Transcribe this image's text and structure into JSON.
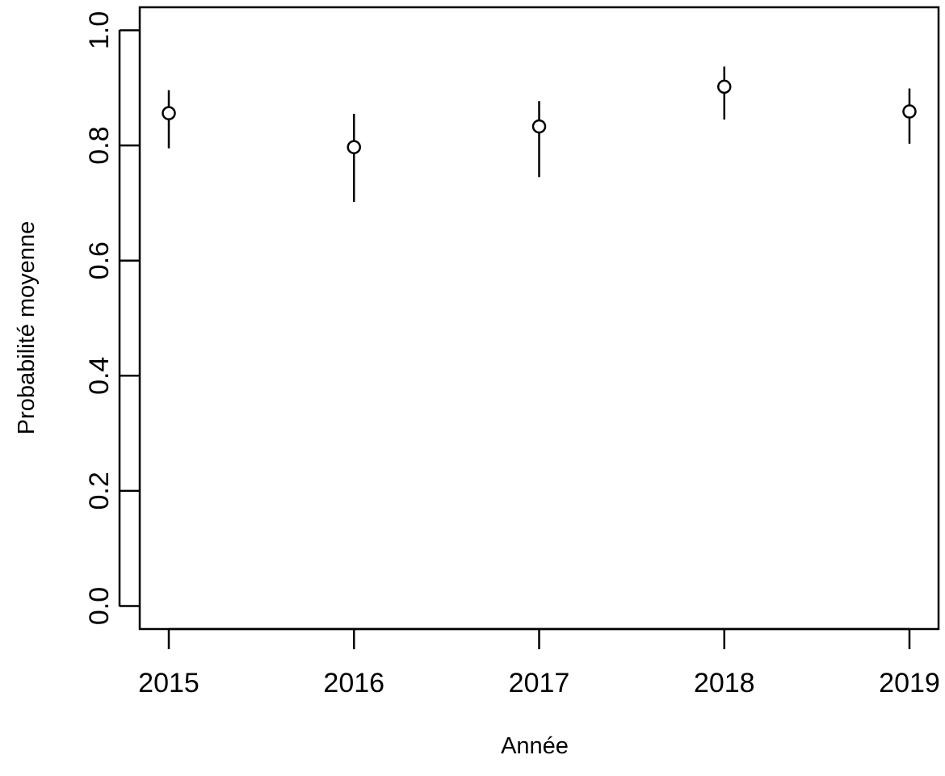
{
  "chart_data": {
    "type": "scatter",
    "title": "",
    "xlabel": "Année",
    "ylabel": "Probabilité moyenne",
    "categories": [
      "2015",
      "2016",
      "2017",
      "2018",
      "2019"
    ],
    "x": [
      2015,
      2016,
      2017,
      2018,
      2019
    ],
    "y": [
      0.856,
      0.797,
      0.833,
      0.902,
      0.859
    ],
    "y_lower": [
      0.795,
      0.702,
      0.745,
      0.845,
      0.803
    ],
    "y_upper": [
      0.896,
      0.855,
      0.877,
      0.937,
      0.899
    ],
    "yticks": [
      "0.0",
      "0.2",
      "0.4",
      "0.6",
      "0.8",
      "1.0"
    ],
    "ytick_values": [
      0.0,
      0.2,
      0.4,
      0.6,
      0.8,
      1.0
    ],
    "ylim": [
      -0.04,
      1.04
    ],
    "grid": false,
    "legend": "none",
    "marker": "open-circle",
    "error_bars": true,
    "color": "#000000"
  }
}
